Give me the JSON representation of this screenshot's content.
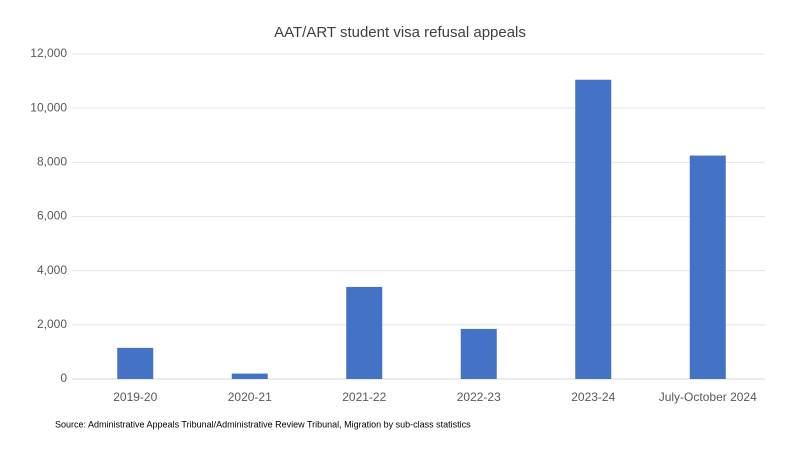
{
  "chart_data": {
    "type": "bar",
    "title": "AAT/ART student visa refusal appeals",
    "categories": [
      "2019-20",
      "2020-21",
      "2021-22",
      "2022-23",
      "2023-24",
      "July-October 2024"
    ],
    "values": [
      1150,
      200,
      3400,
      1850,
      11050,
      8250
    ],
    "color": "#4472c4",
    "ylim": [
      0,
      12000
    ],
    "yticks": [
      0,
      {
        "value": 2000,
        "label": "2,000"
      },
      {
        "value": 4000,
        "label": "4,000"
      },
      {
        "value": 6000,
        "label": "6,000"
      },
      {
        "value": 8000,
        "label": "8,000"
      },
      {
        "value": 10000,
        "label": "10,000"
      },
      {
        "value": 12000,
        "label": "12,000"
      }
    ],
    "grid": true,
    "source": "Source: Administrative Appeals Tribunal/Administrative Review Tribunal, Migration by sub-class statistics"
  }
}
